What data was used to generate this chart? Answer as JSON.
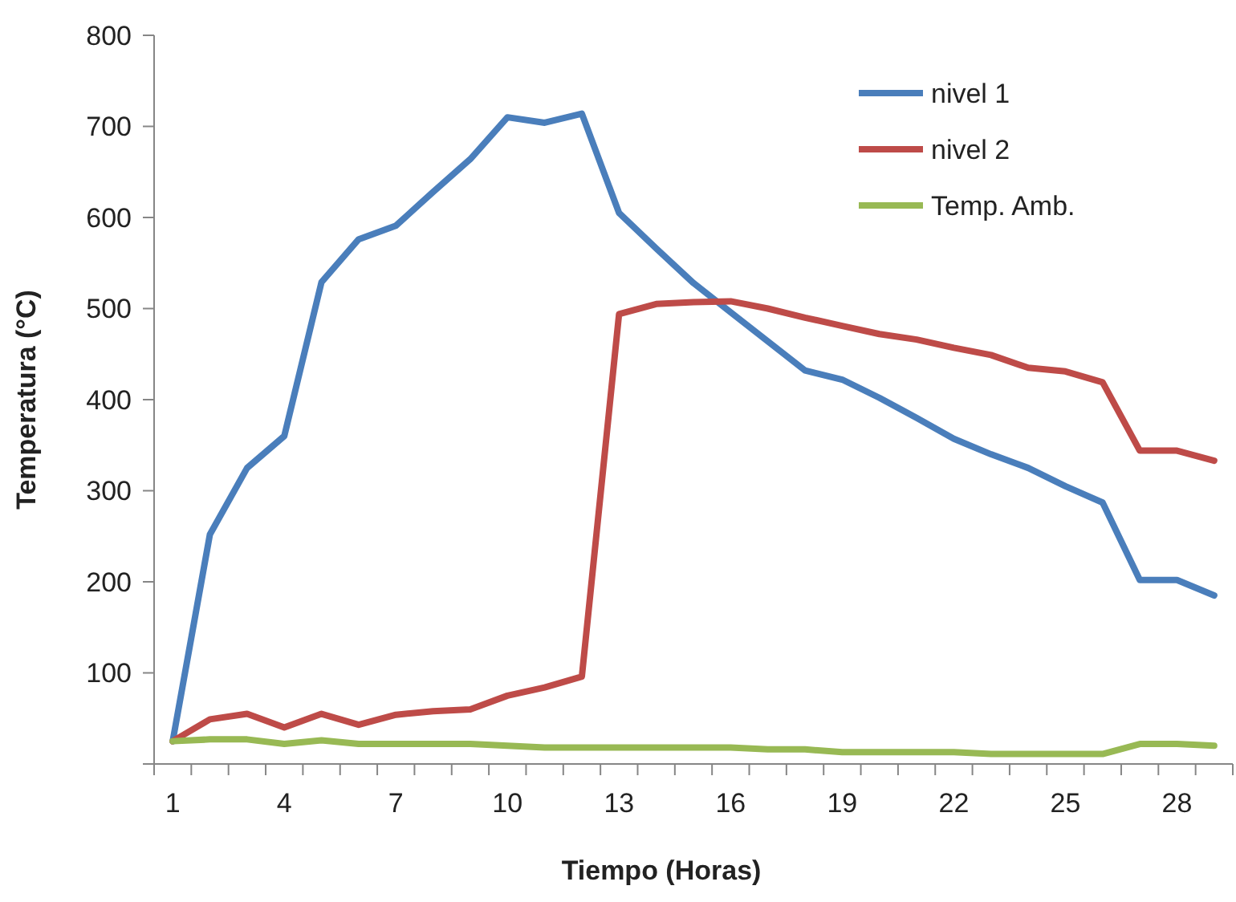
{
  "chart_data": {
    "type": "line",
    "xlabel": "Tiempo (Horas)",
    "ylabel": "Temperatura (°C)",
    "categories": [
      "1",
      null,
      null,
      "4",
      null,
      null,
      "7",
      null,
      null,
      "10",
      null,
      null,
      "13",
      null,
      null,
      "16",
      null,
      null,
      "19",
      null,
      null,
      "22",
      null,
      null,
      "25",
      null,
      null,
      "28",
      null
    ],
    "series": [
      {
        "name": "nivel 1",
        "color": "#4a7ebb",
        "values": [
          25,
          252,
          325,
          360,
          529,
          576,
          591,
          628,
          664,
          710,
          704,
          714,
          605,
          566,
          528,
          496,
          464,
          432,
          422,
          402,
          380,
          357,
          340,
          325,
          305,
          287,
          202,
          202,
          185
        ]
      },
      {
        "name": "nivel 2",
        "color": "#be4b48",
        "values": [
          25,
          49,
          55,
          40,
          55,
          43,
          54,
          58,
          60,
          75,
          84,
          96,
          494,
          505,
          507,
          508,
          500,
          490,
          481,
          472,
          466,
          457,
          449,
          435,
          431,
          419,
          344,
          344,
          333
        ]
      },
      {
        "name": "Temp. Amb.",
        "color": "#98b954",
        "values": [
          25,
          27,
          27,
          22,
          26,
          22,
          22,
          22,
          22,
          20,
          18,
          18,
          18,
          18,
          18,
          18,
          16,
          16,
          13,
          13,
          13,
          13,
          11,
          11,
          11,
          11,
          22,
          22,
          20
        ]
      }
    ],
    "ylim": [
      0,
      800
    ],
    "yticks": [
      {
        "value": 0,
        "label": null
      },
      100,
      200,
      300,
      400,
      500,
      600,
      700,
      800
    ],
    "legend": "top right",
    "grid": false,
    "marker": "none",
    "line_style": "solid"
  }
}
